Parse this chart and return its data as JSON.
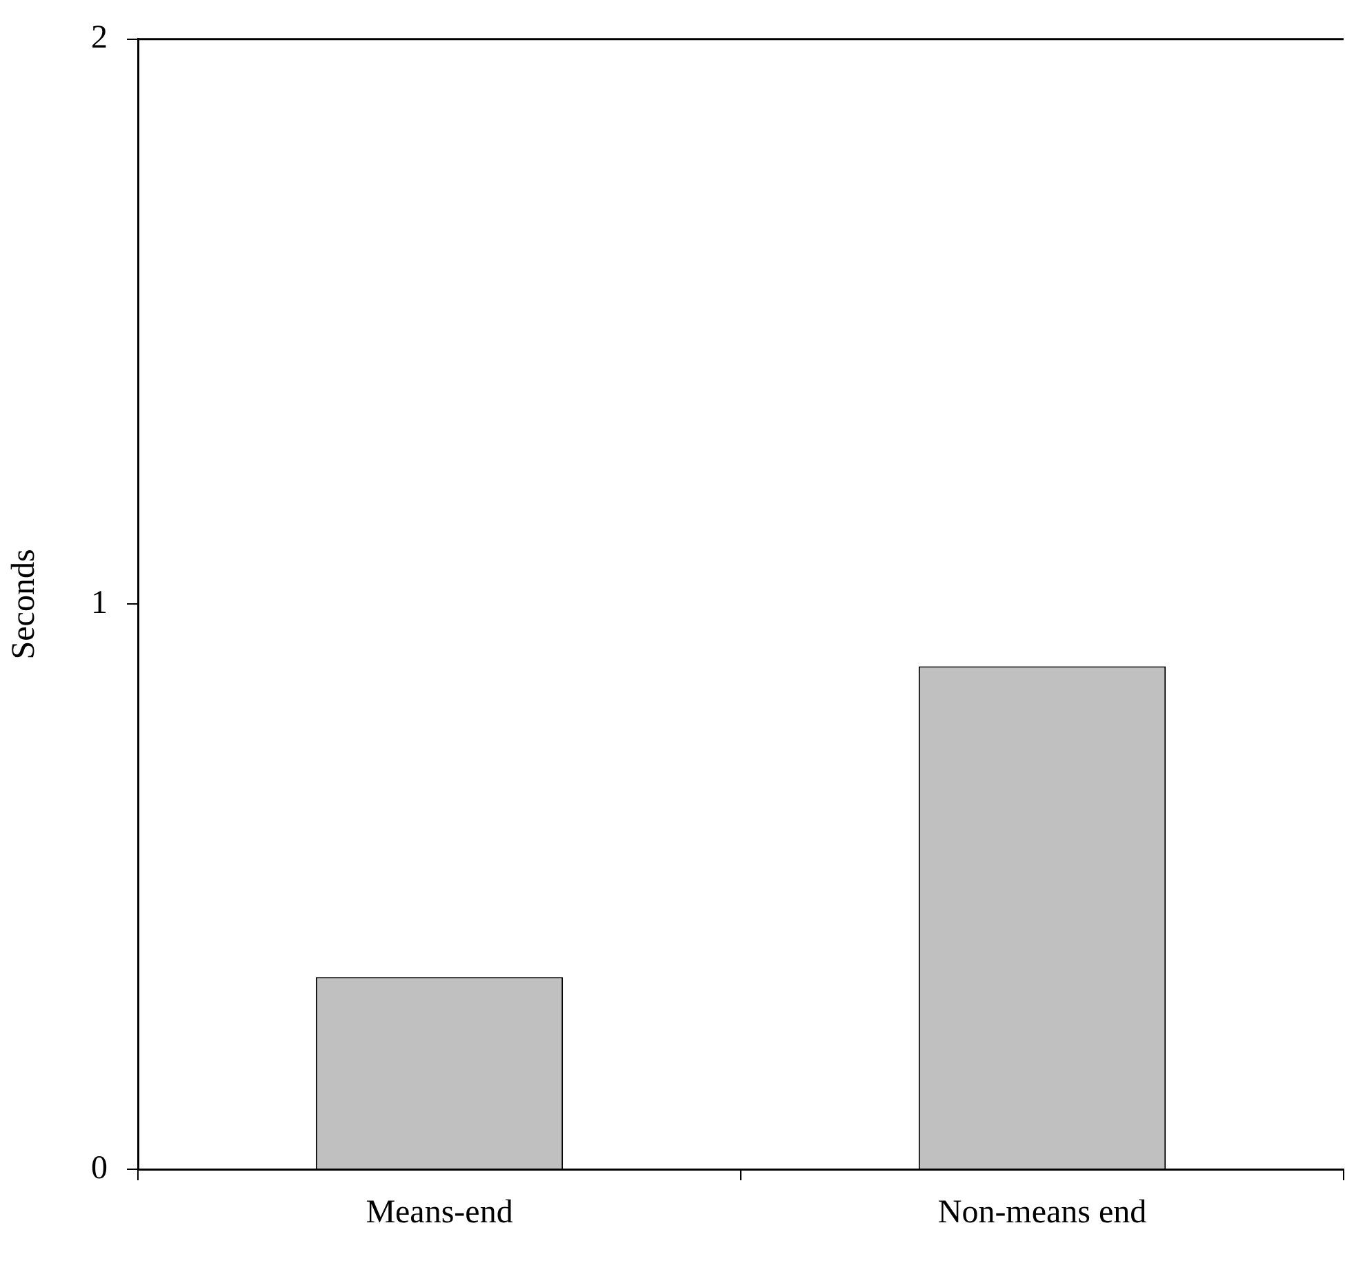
{
  "chart_data": {
    "type": "bar",
    "ylabel": "Seconds",
    "categories": [
      "Means-end",
      "Non-means end"
    ],
    "values": [
      0.34,
      0.89
    ],
    "color": "#c0c0c0",
    "ylim": [
      0,
      2
    ],
    "yticks": [
      0,
      1,
      2
    ],
    "grid": false,
    "legend": false
  }
}
